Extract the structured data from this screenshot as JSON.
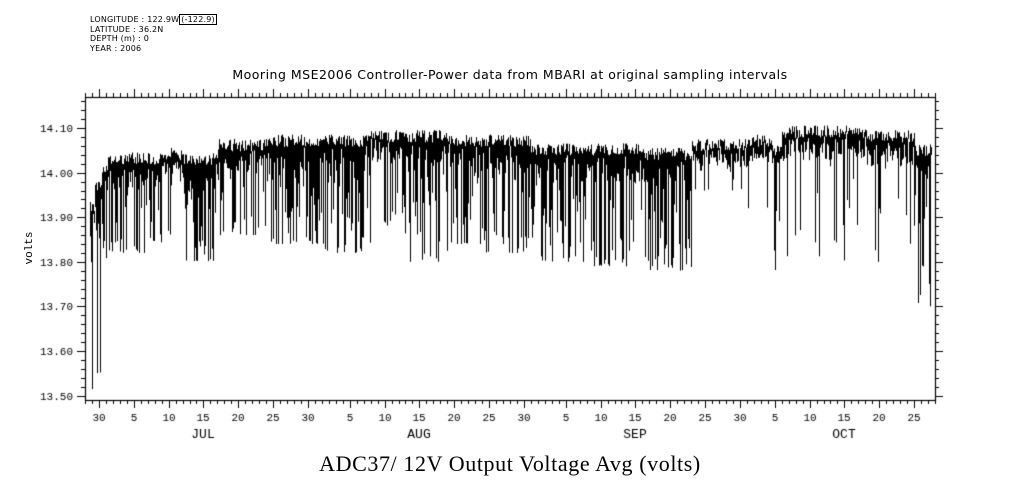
{
  "meta": {
    "longitude_label": "LONGITUDE :",
    "longitude_value": "122.9W",
    "longitude_boxed": "(-122.9)",
    "latitude": "LATITUDE : 36.2N",
    "depth": "DEPTH (m) : 0",
    "year": "YEAR : 2006"
  },
  "titles": {
    "top": "Mooring MSE2006 Controller-Power data from MBARI at original sampling intervals",
    "bottom": "ADC37/ 12V Output Voltage Avg (volts)",
    "ylabel": "volts"
  },
  "chart_data": {
    "type": "line",
    "title": "Mooring MSE2006 Controller-Power data from MBARI at original sampling intervals",
    "xlabel": "",
    "ylabel": "volts",
    "ylim": [
      13.49,
      14.17
    ],
    "xlim_days": [
      0,
      122
    ],
    "x_unit": "days since 2006-06-28",
    "y_minor_step": 0.02,
    "x_minor_step": 1,
    "y_ticks": [
      {
        "v": 13.5,
        "label": "13.50"
      },
      {
        "v": 13.6,
        "label": "13.60"
      },
      {
        "v": 13.7,
        "label": "13.70"
      },
      {
        "v": 13.8,
        "label": "13.80"
      },
      {
        "v": 13.9,
        "label": "13.90"
      },
      {
        "v": 14.0,
        "label": "14.00"
      },
      {
        "v": 14.1,
        "label": "14.10"
      }
    ],
    "x_ticks": [
      {
        "day": 2,
        "label": "30"
      },
      {
        "day": 7,
        "label": "5"
      },
      {
        "day": 12,
        "label": "10"
      },
      {
        "day": 17,
        "label": "15"
      },
      {
        "day": 22,
        "label": "20"
      },
      {
        "day": 27,
        "label": "25"
      },
      {
        "day": 32,
        "label": "30"
      },
      {
        "day": 38,
        "label": "5"
      },
      {
        "day": 43,
        "label": "10"
      },
      {
        "day": 48,
        "label": "15"
      },
      {
        "day": 53,
        "label": "20"
      },
      {
        "day": 58,
        "label": "25"
      },
      {
        "day": 63,
        "label": "30"
      },
      {
        "day": 69,
        "label": "5"
      },
      {
        "day": 74,
        "label": "10"
      },
      {
        "day": 79,
        "label": "15"
      },
      {
        "day": 84,
        "label": "20"
      },
      {
        "day": 89,
        "label": "25"
      },
      {
        "day": 94,
        "label": "30"
      },
      {
        "day": 99,
        "label": "5"
      },
      {
        "day": 104,
        "label": "10"
      },
      {
        "day": 109,
        "label": "15"
      },
      {
        "day": 114,
        "label": "20"
      },
      {
        "day": 119,
        "label": "25"
      }
    ],
    "month_labels": [
      {
        "day": 17,
        "label": "JUL"
      },
      {
        "day": 48,
        "label": "AUG"
      },
      {
        "day": 79,
        "label": "SEP"
      },
      {
        "day": 109,
        "label": "OCT"
      }
    ],
    "series_envelope": {
      "description": "Dense noisy 12V output voltage trace. Segments encode [start_day, end_day, top_volts, typical_band_thickness_volts, spike_floor_volts, spike_density]. Trace hugs ~14.0-14.08 V with frequent downward spikes; deep excursion to 13.50 V at start (Jun 29-30), calmer late Sep, sparse deep dips to ~13.70-13.80 V in Oct.",
      "segments": [
        [
          0.6,
          1.3,
          13.92,
          0.08,
          13.5,
          0.7
        ],
        [
          1.3,
          2.3,
          13.97,
          0.1,
          13.55,
          0.55
        ],
        [
          2.3,
          3.2,
          14.0,
          0.07,
          13.8,
          0.4
        ],
        [
          3.2,
          11,
          14.03,
          0.08,
          13.82,
          0.55
        ],
        [
          11,
          14,
          14.04,
          0.05,
          13.86,
          0.25
        ],
        [
          14,
          19,
          14.03,
          0.08,
          13.8,
          0.75
        ],
        [
          19,
          26,
          14.06,
          0.07,
          13.86,
          0.5
        ],
        [
          26,
          34,
          14.07,
          0.08,
          13.84,
          0.6
        ],
        [
          34,
          41,
          14.07,
          0.09,
          13.82,
          0.65
        ],
        [
          41,
          45,
          14.08,
          0.06,
          13.88,
          0.35
        ],
        [
          45,
          52,
          14.08,
          0.08,
          13.8,
          0.6
        ],
        [
          52,
          57,
          14.07,
          0.07,
          13.84,
          0.5
        ],
        [
          57,
          64,
          14.07,
          0.08,
          13.82,
          0.6
        ],
        [
          64,
          72,
          14.05,
          0.08,
          13.8,
          0.65
        ],
        [
          72,
          80,
          14.05,
          0.07,
          13.79,
          0.7
        ],
        [
          80,
          87,
          14.04,
          0.08,
          13.78,
          0.7
        ],
        [
          87,
          95,
          14.06,
          0.05,
          13.96,
          0.25
        ],
        [
          95,
          98.5,
          14.07,
          0.05,
          13.92,
          0.2
        ],
        [
          98.5,
          100,
          14.05,
          0.05,
          13.74,
          0.5
        ],
        [
          100,
          112,
          14.09,
          0.06,
          13.8,
          0.15
        ],
        [
          112,
          119,
          14.08,
          0.07,
          13.8,
          0.25
        ],
        [
          119,
          121.5,
          14.05,
          0.06,
          13.7,
          0.45
        ]
      ]
    },
    "line_color": "#000000",
    "background": "#ffffff",
    "grid": false,
    "legend": false
  }
}
